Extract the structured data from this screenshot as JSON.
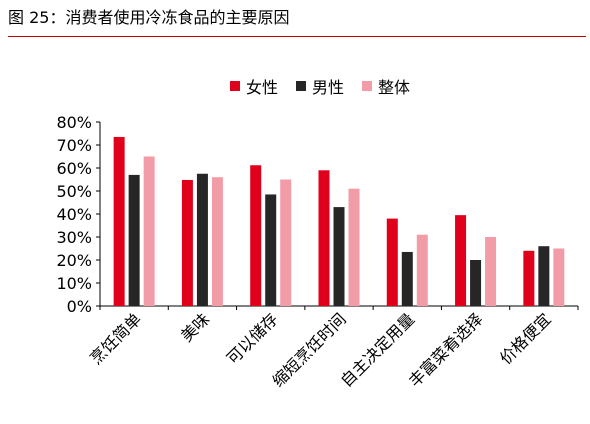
{
  "figure": {
    "title": "图 25：消费者使用冷冻食品的主要原因"
  },
  "chart_data": {
    "type": "bar",
    "categories": [
      "烹饪简单",
      "美味",
      "可以储存",
      "缩短烹饪时间",
      "自主决定用量",
      "丰富菜肴选择",
      "价格便宜"
    ],
    "series": [
      {
        "name": "女性",
        "color": "#e0001b",
        "values": [
          73.5,
          54.8,
          61.2,
          59.0,
          38.0,
          39.5,
          24.0
        ]
      },
      {
        "name": "男性",
        "color": "#262626",
        "values": [
          57.0,
          57.5,
          48.5,
          43.0,
          23.5,
          20.0,
          26.0
        ]
      },
      {
        "name": "整体",
        "color": "#f29ca7",
        "values": [
          65.0,
          56.0,
          55.0,
          51.0,
          31.0,
          30.0,
          25.0
        ]
      }
    ],
    "y_ticks": [
      "0%",
      "10%",
      "20%",
      "30%",
      "40%",
      "50%",
      "60%",
      "70%",
      "80%"
    ],
    "ylim": [
      0,
      80
    ],
    "legend_position": "top",
    "grid": false
  }
}
